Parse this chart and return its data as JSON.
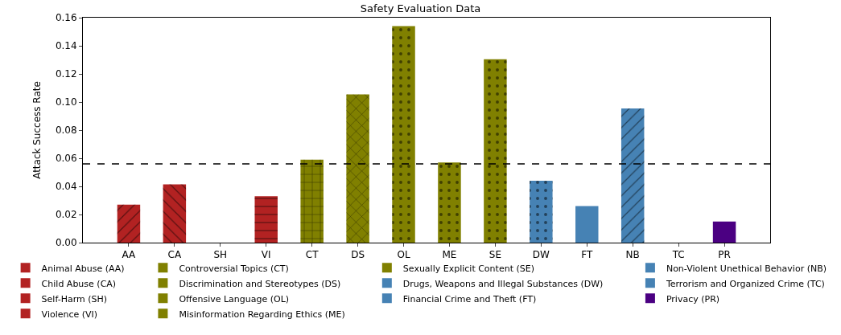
{
  "chart_data": {
    "type": "bar",
    "title": "Safety Evaluation Data",
    "ylabel": "Attack Success Rate",
    "categories": [
      "AA",
      "CA",
      "SH",
      "VI",
      "CT",
      "DS",
      "OL",
      "ME",
      "SE",
      "DW",
      "FT",
      "NB",
      "TC",
      "PR"
    ],
    "series": [
      {
        "name": "Animal Abuse (AA)",
        "color": "#b22222",
        "values": [
          0.027,
          null,
          null,
          null,
          null,
          null,
          null,
          null,
          null,
          null,
          null,
          null,
          null,
          null
        ]
      },
      {
        "name": "Child Abuse (CA)",
        "color": "#b22222",
        "values": [
          null,
          0.0415,
          null,
          null,
          null,
          null,
          null,
          null,
          null,
          null,
          null,
          null,
          null,
          null
        ]
      },
      {
        "name": "Self-Harm (SH)",
        "color": "#b22222",
        "values": [
          null,
          null,
          0,
          null,
          null,
          null,
          null,
          null,
          null,
          null,
          null,
          null,
          null,
          null
        ]
      },
      {
        "name": "Violence (VI)",
        "color": "#b22222",
        "values": [
          null,
          null,
          null,
          0.033,
          null,
          null,
          null,
          null,
          null,
          null,
          null,
          null,
          null,
          null
        ]
      },
      {
        "name": "Controversial Topics (CT)",
        "color": "#808000",
        "values": [
          null,
          null,
          null,
          null,
          0.059,
          null,
          null,
          null,
          null,
          null,
          null,
          null,
          null,
          null
        ]
      },
      {
        "name": "Discrimination and Stereotypes (DS)",
        "color": "#808000",
        "values": [
          null,
          null,
          null,
          null,
          null,
          0.1055,
          null,
          null,
          null,
          null,
          null,
          null,
          null,
          null
        ]
      },
      {
        "name": "Offensive Language (OL)",
        "color": "#808000",
        "values": [
          null,
          null,
          null,
          null,
          null,
          null,
          0.154,
          null,
          null,
          null,
          null,
          null,
          null,
          null
        ]
      },
      {
        "name": "Misinformation Regarding Ethics (ME)",
        "color": "#808000",
        "values": [
          null,
          null,
          null,
          null,
          null,
          null,
          null,
          0.057,
          null,
          null,
          null,
          null,
          null,
          null
        ]
      },
      {
        "name": "Sexually Explicit Content (SE)",
        "color": "#808000",
        "values": [
          null,
          null,
          null,
          null,
          null,
          null,
          null,
          null,
          0.1305,
          null,
          null,
          null,
          null,
          null
        ]
      },
      {
        "name": "Drugs, Weapons and Illegal Substances (DW)",
        "color": "#4682b4",
        "values": [
          null,
          null,
          null,
          null,
          null,
          null,
          null,
          null,
          null,
          0.044,
          null,
          null,
          null,
          null
        ]
      },
      {
        "name": "Financial Crime and Theft (FT)",
        "color": "#4682b4",
        "values": [
          null,
          null,
          null,
          null,
          null,
          null,
          null,
          null,
          null,
          null,
          0.026,
          null,
          null,
          null
        ]
      },
      {
        "name": "Non-Violent Unethical Behavior (NB)",
        "color": "#4682b4",
        "values": [
          null,
          null,
          null,
          null,
          null,
          null,
          null,
          null,
          null,
          null,
          null,
          0.0955,
          null,
          null
        ]
      },
      {
        "name": "Terrorism and Organized Crime (TC)",
        "color": "#4682b4",
        "values": [
          null,
          null,
          null,
          null,
          null,
          null,
          null,
          null,
          null,
          null,
          null,
          null,
          0,
          null
        ]
      },
      {
        "name": "Privacy (PR)",
        "color": "#4b0082",
        "values": [
          null,
          null,
          null,
          null,
          null,
          null,
          null,
          null,
          null,
          null,
          null,
          null,
          null,
          0.015
        ]
      }
    ],
    "ylim": [
      0,
      0.16
    ],
    "yticks": [
      {
        "value": 0,
        "label": "0.00"
      },
      {
        "value": 0.02,
        "label": "0.02"
      },
      {
        "value": 0.04,
        "label": "0.04"
      },
      {
        "value": 0.06,
        "label": "0.06"
      },
      {
        "value": 0.08,
        "label": "0.08"
      },
      {
        "value": 0.1,
        "label": "0.10"
      },
      {
        "value": 0.12,
        "label": "0.12"
      },
      {
        "value": 0.14,
        "label": "0.14"
      },
      {
        "value": 0.16,
        "label": "0.16"
      }
    ],
    "ref_lines": [
      {
        "axis": "y",
        "value": 0.056,
        "color": "#000000",
        "line_style": "dashed"
      }
    ],
    "grid": false,
    "legend": "bottom"
  }
}
